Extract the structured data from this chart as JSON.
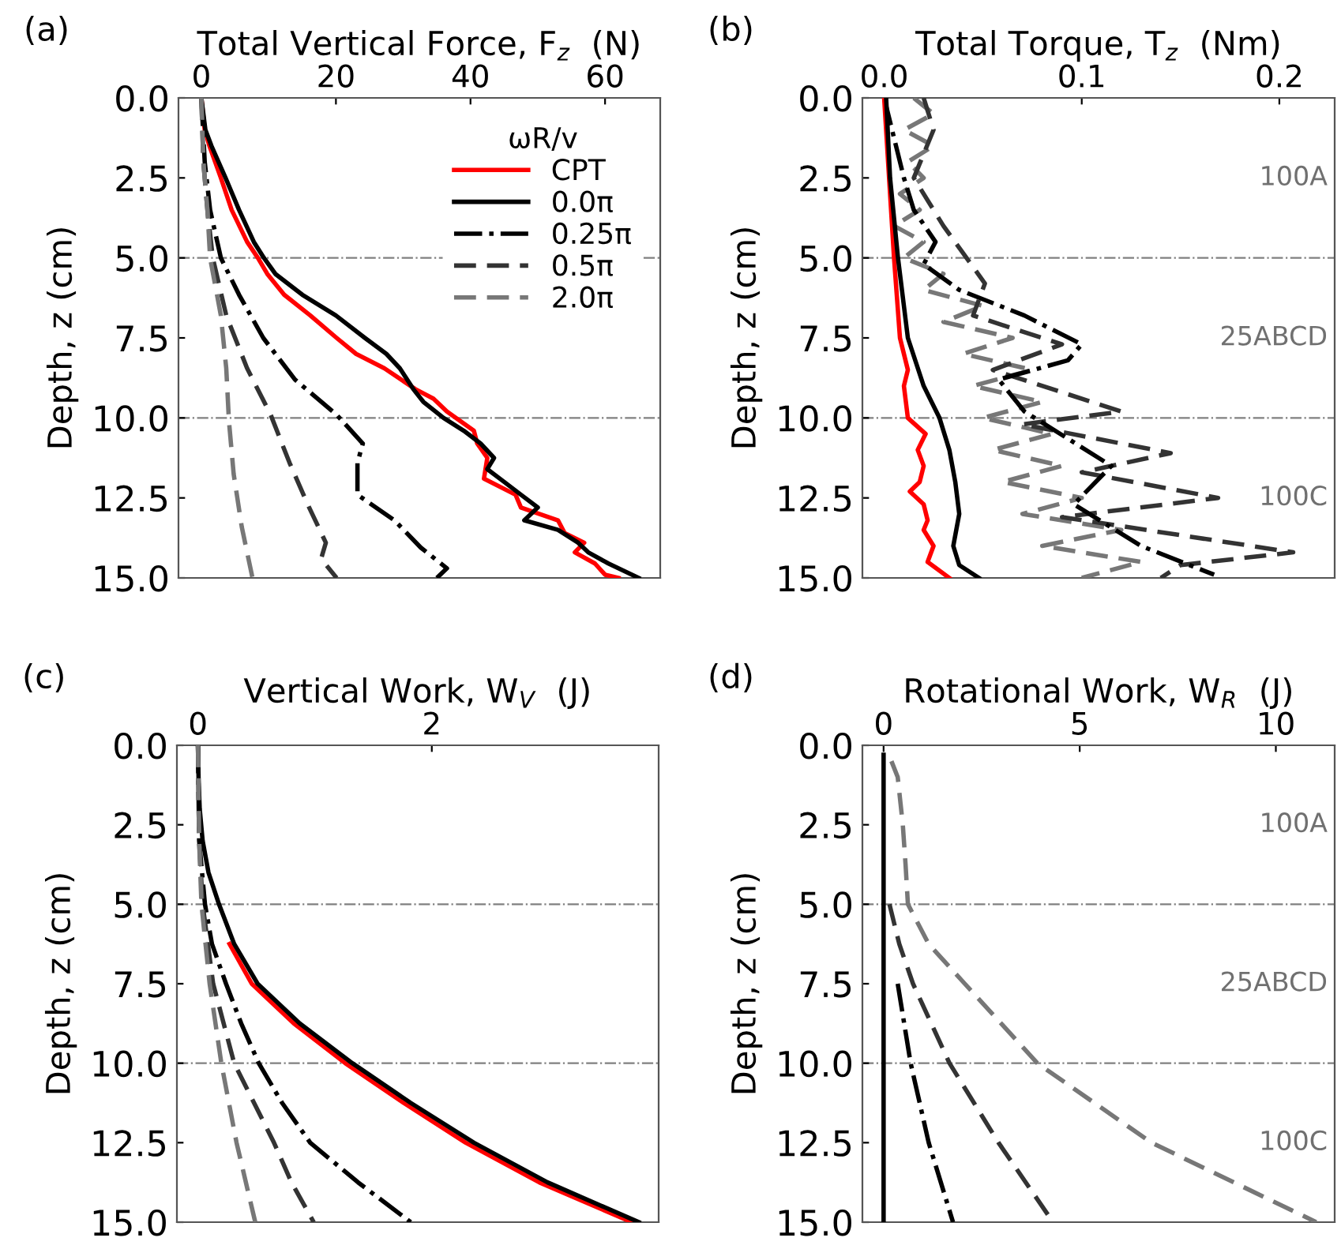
{
  "chart_data": [
    {
      "type": "line",
      "xlabel": "Total Vertical Force, F$_{z}$  (N)",
      "ylabel": "Depth, z (cm)",
      "legend_title": "ωR/v",
      "legend": "top right",
      "annotations": [
        "(a)"
      ],
      "xlim": [
        -3.4,
        68.2
      ],
      "xticks": [
        0,
        20,
        40,
        60
      ],
      "ylim": [
        15,
        0
      ],
      "yticks": [
        {
          "value": 0,
          "label": "0.0"
        },
        {
          "value": 2.5,
          "label": "2.5"
        },
        {
          "value": 5,
          "label": "5.0"
        },
        {
          "value": 7.5,
          "label": "7.5"
        },
        {
          "value": 10,
          "label": "10.0"
        },
        {
          "value": 12.5,
          "label": "12.5"
        },
        {
          "value": 15,
          "label": "15.0"
        }
      ],
      "ref_lines": [
        {
          "axis": "y",
          "value": 5,
          "color": "#808080",
          "line_style": "dashdot"
        },
        {
          "axis": "y",
          "value": 10,
          "color": "#808080",
          "line_style": "dashdot"
        }
      ],
      "series": [
        {
          "name": "CPT",
          "color": "#ff0000",
          "line_style": "solid",
          "x": [
            0,
            0.5,
            1.2,
            2.9,
            4.5,
            6.8,
            8.4,
            9.8,
            12.3,
            16.2,
            20.1,
            23,
            27.2,
            31.8,
            34.5,
            36.5,
            40.5,
            41,
            42.5,
            42,
            46.7,
            47.5,
            53,
            54,
            56.9,
            55.5,
            58.5,
            60,
            62
          ],
          "values": [
            0,
            1,
            1.5,
            2.5,
            3.5,
            4.5,
            5,
            5.5,
            6.15,
            6.8,
            7.5,
            8,
            8.45,
            9.1,
            9.4,
            9.8,
            10.4,
            10.8,
            11.25,
            11.9,
            12.4,
            12.8,
            13.2,
            13.6,
            13.9,
            14.2,
            14.55,
            14.9,
            15
          ]
        },
        {
          "name": "0.0π",
          "color": "#000000",
          "line_style": "solid",
          "x": [
            0,
            0.6,
            1.5,
            3.6,
            5.6,
            7.8,
            9.3,
            11,
            15,
            20,
            24.3,
            27.5,
            29.5,
            31.5,
            33,
            36,
            39,
            41.5,
            43.5,
            42.5,
            45,
            47.5,
            50,
            48,
            53,
            56,
            57.5,
            60.5,
            65
          ],
          "values": [
            0,
            1,
            1.5,
            2.5,
            3.5,
            4.5,
            5,
            5.5,
            6.15,
            6.8,
            7.5,
            8,
            8.45,
            9.1,
            9.5,
            10,
            10.4,
            10.8,
            11.25,
            11.6,
            12,
            12.4,
            12.8,
            13.2,
            13.5,
            13.9,
            14.2,
            14.55,
            15
          ]
        },
        {
          "name": "0.25π",
          "color": "#000000",
          "line_style": "dashdot",
          "x": [
            0,
            0.5,
            1.3,
            2.9,
            5.6,
            9.2,
            13.9,
            20.1,
            24,
            23.2,
            23.2,
            28.7,
            32.6,
            36.5,
            35
          ],
          "values": [
            0,
            2,
            3.5,
            5,
            6.15,
            7.5,
            8.8,
            9.9,
            10.8,
            11.4,
            12.4,
            13.2,
            14.05,
            14.7,
            15
          ]
        },
        {
          "name": "0.5π",
          "color": "#333333",
          "line_style": "dashed",
          "x": [
            0,
            0.3,
            0.9,
            1.7,
            3.7,
            6.8,
            10.3,
            13.1,
            15.8,
            18.5,
            17.8,
            20.1
          ],
          "values": [
            0,
            2,
            3.5,
            5,
            6.8,
            8.45,
            9.9,
            11.4,
            12.7,
            13.9,
            14.4,
            15
          ]
        },
        {
          "name": "2.0π",
          "color": "#777777",
          "line_style": "dashed",
          "x": [
            0,
            0.3,
            0.9,
            1.3,
            2.9,
            3.7,
            4.1,
            4.8,
            6,
            7.6
          ],
          "values": [
            0,
            2,
            3.5,
            5,
            6.8,
            8.45,
            10.1,
            11.75,
            13.4,
            15
          ]
        }
      ]
    },
    {
      "type": "line",
      "xlabel": "Total Torque, T$_{z}$  (Nm)",
      "ylabel": "Depth, z (cm)",
      "annotations": [
        "(b)",
        "100A",
        "25ABCD",
        "100C"
      ],
      "xlim": [
        -0.011,
        0.228
      ],
      "xticks": [
        {
          "value": 0,
          "label": "0.0"
        },
        0.1,
        0.2
      ],
      "ylim": [
        15,
        0
      ],
      "yticks": [
        {
          "value": 0,
          "label": "0.0"
        },
        {
          "value": 2.5,
          "label": "2.5"
        },
        {
          "value": 5,
          "label": "5.0"
        },
        {
          "value": 7.5,
          "label": "7.5"
        },
        {
          "value": 10,
          "label": "10.0"
        },
        {
          "value": 12.5,
          "label": "12.5"
        },
        {
          "value": 15,
          "label": "15.0"
        }
      ],
      "ref_lines": [
        {
          "axis": "y",
          "value": 5,
          "color": "#808080",
          "line_style": "dashdot"
        },
        {
          "axis": "y",
          "value": 10,
          "color": "#808080",
          "line_style": "dashdot"
        }
      ],
      "series": [
        {
          "color": "#777777",
          "line_style": "dashed",
          "x": [
            0.015,
            0.025,
            0.01,
            0.025,
            0.012,
            0.02,
            0.008,
            0.018,
            0.005,
            0.02,
            0.01,
            0.03,
            0.02,
            0.05,
            0.03,
            0.065,
            0.04,
            0.075,
            0.045,
            0.08,
            0.05,
            0.085,
            0.055,
            0.09,
            0.06,
            0.1,
            0.07,
            0.12,
            0.08,
            0.13,
            0.1
          ],
          "values": [
            0,
            0.5,
            1,
            1.5,
            2,
            2.5,
            3,
            3.5,
            4,
            4.5,
            5,
            5.5,
            6,
            6.5,
            7,
            7.5,
            8,
            8.5,
            9,
            9.5,
            10,
            10.5,
            11,
            11.5,
            12,
            12.5,
            13,
            13.5,
            14,
            14.5,
            15
          ]
        },
        {
          "color": "#333333",
          "line_style": "dashed",
          "x": [
            0.02,
            0.025,
            0.015,
            0.03,
            0.051,
            0.045,
            0.09,
            0.055,
            0.12,
            0.07,
            0.145,
            0.1,
            0.169,
            0.09,
            0.207,
            0.15,
            0.14
          ],
          "values": [
            0,
            1,
            2.5,
            4,
            5.8,
            6.8,
            7.7,
            8.5,
            9.8,
            10.2,
            11.1,
            11.7,
            12.5,
            13.1,
            14.2,
            14.6,
            15
          ]
        },
        {
          "color": "#000000",
          "line_style": "dashdot",
          "x": [
            0,
            0.01,
            0.015,
            0.026,
            0.02,
            0.038,
            0.071,
            0.1,
            0.093,
            0.058,
            0.071,
            0.115,
            0.096,
            0.13,
            0.167
          ],
          "values": [
            0,
            2.5,
            3.5,
            4.5,
            5.2,
            6,
            6.8,
            7.7,
            8.2,
            8.8,
            9.8,
            11.5,
            12.7,
            14,
            14.9
          ]
        },
        {
          "color": "#ff0000",
          "line_style": "solid",
          "x": [
            0,
            0.002,
            0.005,
            0.008,
            0.012,
            0.01,
            0.012,
            0.021,
            0.017,
            0.02,
            0.018,
            0.013,
            0.02,
            0.022,
            0.02,
            0.025,
            0.022,
            0.033
          ],
          "values": [
            0,
            2,
            5,
            7.5,
            8.5,
            9,
            10,
            10.5,
            11,
            11.5,
            12,
            12.3,
            12.7,
            13.2,
            13.5,
            14,
            14.5,
            15
          ]
        },
        {
          "color": "#000000",
          "line_style": "solid",
          "x": [
            0.001,
            0.003,
            0.007,
            0.012,
            0.02,
            0.028,
            0.033,
            0.036,
            0.038,
            0.035,
            0.038,
            0.048
          ],
          "values": [
            0,
            2.5,
            5,
            7.5,
            9,
            10,
            11,
            12,
            13,
            14,
            14.6,
            15
          ]
        }
      ]
    },
    {
      "type": "line",
      "xlabel": "Vertical Work, W$_{V}$  (J)",
      "ylabel": "Depth, z (cm)",
      "annotations": [
        "(c)"
      ],
      "xlim": [
        -0.18,
        3.94
      ],
      "xticks": [
        0,
        2
      ],
      "ylim": [
        15,
        0
      ],
      "yticks": [
        {
          "value": 0,
          "label": "0.0"
        },
        {
          "value": 2.5,
          "label": "2.5"
        },
        {
          "value": 5,
          "label": "5.0"
        },
        {
          "value": 7.5,
          "label": "7.5"
        },
        {
          "value": 10,
          "label": "10.0"
        },
        {
          "value": 12.5,
          "label": "12.5"
        },
        {
          "value": 15,
          "label": "15.0"
        }
      ],
      "ref_lines": [
        {
          "axis": "y",
          "value": 5,
          "color": "#808080",
          "line_style": "dashdot"
        },
        {
          "axis": "y",
          "value": 10,
          "color": "#808080",
          "line_style": "dashdot"
        }
      ],
      "series": [
        {
          "color": "#ff0000",
          "line_style": "solid",
          "x": [
            0.27,
            0.46,
            0.82,
            1.26,
            1.76,
            2.29,
            2.92,
            3.71
          ],
          "values": [
            6.25,
            7.5,
            8.75,
            10,
            11.25,
            12.5,
            13.75,
            15
          ]
        },
        {
          "color": "#000000",
          "line_style": "solid",
          "x": [
            0,
            0.005,
            0.015,
            0.04,
            0.09,
            0.18,
            0.31,
            0.51,
            0.87,
            1.32,
            1.82,
            2.36,
            2.99,
            3.77
          ],
          "values": [
            0,
            1,
            2,
            3,
            4,
            5,
            6.25,
            7.5,
            8.75,
            10,
            11.25,
            12.5,
            13.75,
            15
          ]
        },
        {
          "color": "#000000",
          "line_style": "dashdot",
          "x": [
            0,
            0.01,
            0.06,
            0.12,
            0.24,
            0.37,
            0.52,
            0.72,
            0.96,
            1.37,
            1.82
          ],
          "values": [
            0,
            3,
            5,
            6.25,
            7.5,
            8.75,
            10,
            11.25,
            12.5,
            13.75,
            15
          ]
        },
        {
          "color": "#333333",
          "line_style": "dashed",
          "x": [
            0,
            0.01,
            0.04,
            0.13,
            0.31,
            0.65,
            0.8,
            0.99
          ],
          "values": [
            0,
            3,
            5,
            7.5,
            10,
            12.5,
            13.75,
            15
          ]
        },
        {
          "color": "#777777",
          "line_style": "dashed",
          "x": [
            0,
            0.01,
            0.03,
            0.1,
            0.2,
            0.33,
            0.49
          ],
          "values": [
            0,
            3,
            5,
            7.5,
            10,
            12.5,
            15
          ]
        }
      ]
    },
    {
      "type": "line",
      "xlabel": "Rotational Work, W$_{R}$  (J)",
      "ylabel": "Depth, z (cm)",
      "annotations": [
        "(d)",
        "100A",
        "25ABCD",
        "100C"
      ],
      "xlim": [
        -0.54,
        11.5
      ],
      "xticks": [
        0,
        5,
        10
      ],
      "ylim": [
        15,
        0
      ],
      "yticks": [
        {
          "value": 0,
          "label": "0.0"
        },
        {
          "value": 2.5,
          "label": "2.5"
        },
        {
          "value": 5,
          "label": "5.0"
        },
        {
          "value": 7.5,
          "label": "7.5"
        },
        {
          "value": 10,
          "label": "10.0"
        },
        {
          "value": 12.5,
          "label": "12.5"
        },
        {
          "value": 15,
          "label": "15.0"
        }
      ],
      "ref_lines": [
        {
          "axis": "y",
          "value": 5,
          "color": "#808080",
          "line_style": "dashdot"
        },
        {
          "axis": "y",
          "value": 10,
          "color": "#808080",
          "line_style": "dashdot"
        }
      ],
      "series": [
        {
          "color": "#000000",
          "line_style": "solid",
          "x": [
            0,
            0
          ],
          "values": [
            0.3,
            15
          ]
        },
        {
          "color": "#000000",
          "line_style": "dashdot",
          "x": [
            0.36,
            0.69,
            1.15,
            1.77
          ],
          "values": [
            7.5,
            10,
            12.5,
            15
          ]
        },
        {
          "color": "#333333",
          "line_style": "dashed",
          "x": [
            0.15,
            0.4,
            0.75,
            1.68,
            2.93,
            4.32
          ],
          "values": [
            5,
            6.25,
            7.5,
            10,
            12.5,
            15
          ]
        },
        {
          "color": "#777777",
          "line_style": "dashed",
          "x": [
            0.2,
            0.36,
            0.49,
            0.56,
            0.62,
            1.15,
            2.07,
            3.92,
            6.83,
            11.03
          ],
          "values": [
            0.5,
            1,
            2.5,
            3.75,
            5,
            6.25,
            7.5,
            10,
            12.5,
            15
          ]
        }
      ]
    }
  ]
}
